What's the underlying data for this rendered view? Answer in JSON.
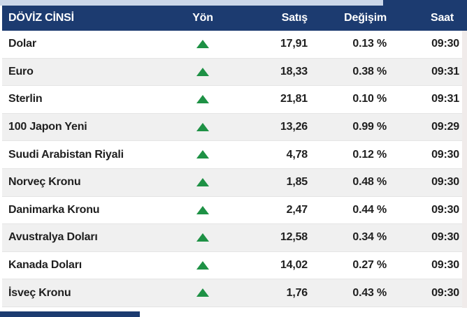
{
  "header": {
    "columns": [
      {
        "key": "name",
        "label": "DÖVİZ CİNSİ"
      },
      {
        "key": "direction",
        "label": "Yön"
      },
      {
        "key": "price",
        "label": "Satış"
      },
      {
        "key": "change",
        "label": "Değişim"
      },
      {
        "key": "time",
        "label": "Saat"
      }
    ]
  },
  "rows": [
    {
      "name": "Dolar",
      "direction": "up",
      "price": "17,91",
      "change": "0.13 %",
      "time": "09:30"
    },
    {
      "name": "Euro",
      "direction": "up",
      "price": "18,33",
      "change": "0.38 %",
      "time": "09:31"
    },
    {
      "name": "Sterlin",
      "direction": "up",
      "price": "21,81",
      "change": "0.10 %",
      "time": "09:31"
    },
    {
      "name": "100 Japon Yeni",
      "direction": "up",
      "price": "13,26",
      "change": "0.99 %",
      "time": "09:29"
    },
    {
      "name": "Suudi Arabistan Riyali",
      "direction": "up",
      "price": "4,78",
      "change": "0.12 %",
      "time": "09:30"
    },
    {
      "name": "Norveç Kronu",
      "direction": "up",
      "price": "1,85",
      "change": "0.48 %",
      "time": "09:30"
    },
    {
      "name": "Danimarka Kronu",
      "direction": "up",
      "price": "2,47",
      "change": "0.44 %",
      "time": "09:30"
    },
    {
      "name": "Avustralya Doları",
      "direction": "up",
      "price": "12,58",
      "change": "0.34 %",
      "time": "09:30"
    },
    {
      "name": "Kanada Doları",
      "direction": "up",
      "price": "14,02",
      "change": "0.27 %",
      "time": "09:30"
    },
    {
      "name": "İsveç Kronu",
      "direction": "up",
      "price": "1,76",
      "change": "0.43 %",
      "time": "09:30"
    }
  ],
  "colors": {
    "navy": "#1c3b70",
    "top_strip_blue": "#cbd7e9",
    "up_green": "#1e9145",
    "row_alt_gray": "#f0f0f0",
    "row_white": "#ffffff",
    "separator": "#e4e4e4",
    "right_strip": "#f0ebea",
    "text_dark": "#1f1f1f"
  }
}
